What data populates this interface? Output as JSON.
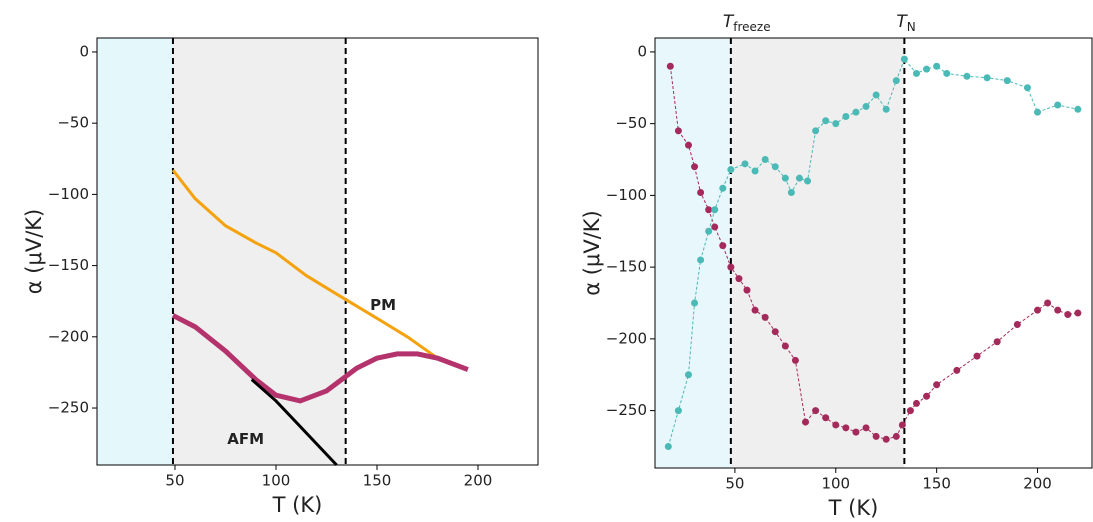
{
  "chart_data": [
    {
      "type": "line",
      "y_label": "α (μV/K)",
      "x_label": "T (K)",
      "xlim": [
        11.4,
        229.7
      ],
      "ylim": [
        -290,
        9.8
      ],
      "xticks": [
        50,
        100,
        150,
        200
      ],
      "yticks": [
        {
          "value": 0,
          "label": "0"
        },
        {
          "value": -50,
          "label": "−50"
        },
        {
          "value": -100,
          "label": "−100"
        },
        {
          "value": -150,
          "label": "−150"
        },
        {
          "value": -200,
          "label": "−200"
        },
        {
          "value": -250,
          "label": "−250"
        }
      ],
      "regions": [
        {
          "xlim": [
            11.4,
            49
          ],
          "color": "#e4f8fb"
        },
        {
          "xlim": [
            49,
            134.5
          ],
          "color": "#efefef"
        }
      ],
      "vlines": [
        49,
        134.5
      ],
      "series": [
        {
          "name": "PM",
          "color": "#f5a20f",
          "marker": false,
          "x": [
            49,
            60,
            75,
            90,
            100,
            115,
            130,
            150,
            165,
            180
          ],
          "values": [
            -83,
            -103,
            -122,
            -134,
            -141,
            -157,
            -170,
            -187,
            -200,
            -215
          ]
        },
        {
          "color": "#b5336c",
          "marker": false,
          "x": [
            49,
            60,
            75,
            90,
            100,
            112,
            125,
            140,
            150,
            160,
            170,
            180,
            195
          ],
          "values": [
            -185,
            -193,
            -210,
            -230,
            -241,
            -245,
            -238,
            -222,
            -215,
            -212,
            -212,
            -215,
            -223
          ]
        },
        {
          "name": "AFM",
          "color": "#000000",
          "marker": false,
          "x": [
            88,
            100,
            110,
            120,
            130
          ],
          "values": [
            -230,
            -245,
            -260,
            -275,
            -290
          ]
        }
      ]
    },
    {
      "type": "line",
      "y_label": "α (μV/K)",
      "x_label": "T (K)",
      "xlim": [
        10.4,
        227
      ],
      "ylim": [
        -290,
        9.7
      ],
      "xticks": [
        50,
        100,
        150,
        200
      ],
      "yticks": [
        {
          "value": 0,
          "label": "0"
        },
        {
          "value": -50,
          "label": "−50"
        },
        {
          "value": -100,
          "label": "−100"
        },
        {
          "value": -150,
          "label": "−150"
        },
        {
          "value": -200,
          "label": "−200"
        },
        {
          "value": -250,
          "label": "−250"
        }
      ],
      "regions": [
        {
          "xlim": [
            10.4,
            48
          ],
          "color": "#e8f7fc"
        },
        {
          "xlim": [
            48,
            134
          ],
          "color": "#efefef"
        }
      ],
      "vlines": [
        48,
        134
      ],
      "vline_labels": [
        {
          "text": "T",
          "sub": "freeze"
        },
        {
          "text": "T",
          "sub": "N"
        }
      ],
      "series": [
        {
          "color": "#a52a5c",
          "marker": true,
          "x": [
            18,
            22,
            27,
            30,
            33,
            37,
            40,
            44,
            48,
            52,
            56,
            60,
            65,
            70,
            75,
            80,
            85,
            90,
            95,
            100,
            105,
            110,
            115,
            120,
            125,
            130,
            133,
            137,
            140,
            145,
            150,
            160,
            170,
            180,
            190,
            200,
            205,
            210,
            215,
            220
          ],
          "values": [
            -10,
            -55,
            -65,
            -80,
            -98,
            -110,
            -122,
            -135,
            -150,
            -158,
            -166,
            -180,
            -185,
            -195,
            -205,
            -215,
            -258,
            -250,
            -255,
            -260,
            -262,
            -265,
            -262,
            -268,
            -270,
            -268,
            -260,
            -250,
            -245,
            -240,
            -232,
            -222,
            -212,
            -202,
            -190,
            -180,
            -175,
            -180,
            -183,
            -182
          ]
        },
        {
          "color": "#4bb9b5",
          "marker": true,
          "x": [
            17,
            22,
            27,
            30,
            33,
            37,
            40,
            44,
            48,
            55,
            60,
            65,
            70,
            75,
            78,
            82,
            86,
            90,
            95,
            100,
            105,
            110,
            115,
            120,
            125,
            130,
            134,
            140,
            145,
            150,
            155,
            165,
            175,
            185,
            195,
            200,
            210,
            220
          ],
          "values": [
            -275,
            -250,
            -225,
            -175,
            -145,
            -125,
            -110,
            -95,
            -82,
            -78,
            -83,
            -75,
            -80,
            -88,
            -98,
            -88,
            -90,
            -55,
            -48,
            -50,
            -45,
            -42,
            -38,
            -30,
            -40,
            -20,
            -5,
            -15,
            -12,
            -10,
            -15,
            -17,
            -18,
            -20,
            -25,
            -42,
            -37,
            -40
          ]
        }
      ]
    }
  ]
}
